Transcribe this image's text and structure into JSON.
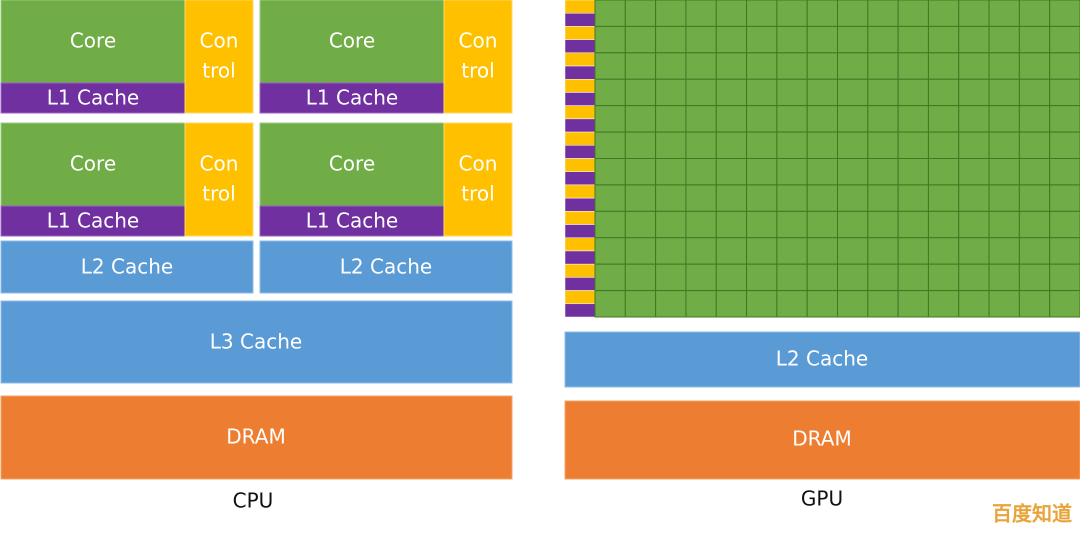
{
  "cpu": {
    "cores": [
      {
        "core": "Core",
        "control": [
          "Con",
          "trol"
        ],
        "l1": "L1 Cache"
      },
      {
        "core": "Core",
        "control": [
          "Con",
          "trol"
        ],
        "l1": "L1 Cache"
      },
      {
        "core": "Core",
        "control": [
          "Con",
          "trol"
        ],
        "l1": "L1 Cache"
      },
      {
        "core": "Core",
        "control": [
          "Con",
          "trol"
        ],
        "l1": "L1 Cache"
      }
    ],
    "l2": [
      "L2 Cache",
      "L2 Cache"
    ],
    "l3": "L3 Cache",
    "dram": "DRAM",
    "label": "CPU"
  },
  "gpu": {
    "l2": "L2 Cache",
    "dram": "DRAM",
    "label": "GPU"
  },
  "watermark": "百度知道"
}
